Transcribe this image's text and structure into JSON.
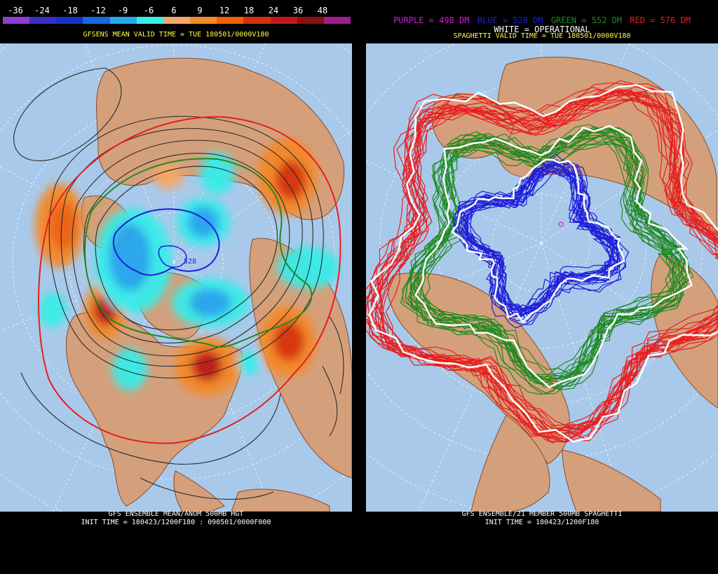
{
  "colors": {
    "ocean": "#a9c9ea",
    "land": "#d4a07c",
    "border": "#8b4a2a",
    "purple": "#d21ed2",
    "blue": "#1f1fd8",
    "green": "#1f8a1f",
    "red": "#e81e1e",
    "white": "#ffffff",
    "header_text": "#ffff40"
  },
  "left_panel": {
    "legend": {
      "labels": [
        "-36",
        "-24",
        "-18",
        "-12",
        "-9",
        "-6",
        "6",
        "9",
        "12",
        "18",
        "24",
        "36",
        "48"
      ],
      "colors": [
        "#8c3cd0",
        "#3a2ec8",
        "#1830c8",
        "#1a66e0",
        "#28a6ee",
        "#38ece8",
        "#f4a868",
        "#f48828",
        "#f0600a",
        "#d8300a",
        "#c01818",
        "#8c1010",
        "#a01e8e"
      ]
    },
    "header": "GFSENS MEAN VALID TIME = TUE 180501/0000V180",
    "contour_label": "528",
    "footer_line1": "GFS ENSEMBLE MEAN/ANOM 500MB HGT",
    "footer_line2": "INIT TIME = 180423/1200F180 : 090501/0000F000"
  },
  "right_panel": {
    "legend_items": [
      {
        "text": "PURPLE = 498 DM",
        "color": "#d21ed2"
      },
      {
        "text": "BLUE = 528 DM",
        "color": "#1f1fd8"
      },
      {
        "text": "GREEN = 552 DM",
        "color": "#1f8a1f"
      },
      {
        "text": "RED = 576 DM",
        "color": "#e81e1e"
      }
    ],
    "white_line": "WHITE = OPERATIONAL",
    "header": "SPAGHETTI VALID TIME = TUE 180501/0000V180",
    "footer_line1": "GFS ENSEMBLE/21 MEMBER 500MB SPAGHETTI",
    "footer_line2": "INIT TIME = 180423/1200F180"
  }
}
